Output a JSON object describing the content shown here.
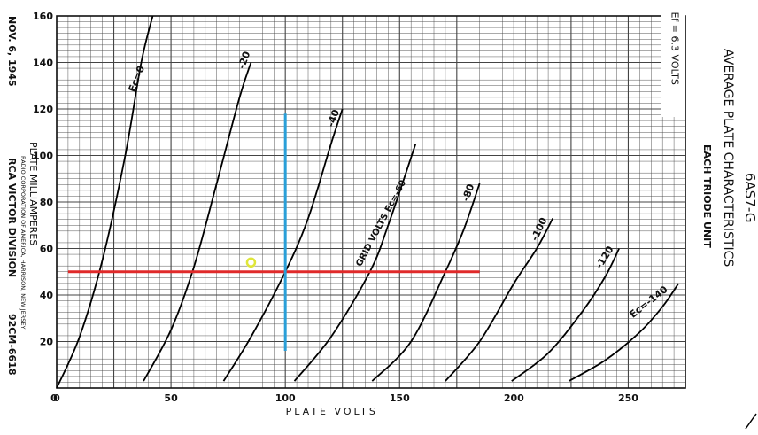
{
  "chart_data": {
    "type": "line",
    "xlabel": "PLATE VOLTS",
    "ylabel": "PLATE MILLIAMPERES",
    "xlim": [
      0,
      275
    ],
    "ylim": [
      0,
      160
    ],
    "x_ticks": [
      0,
      50,
      100,
      150,
      200,
      250
    ],
    "y_ticks": [
      20,
      40,
      60,
      80,
      100,
      120,
      140,
      160
    ],
    "grid": true,
    "title_lines": [
      "6AS7-G",
      "AVERAGE",
      "PLATE CHARACTERISTICS",
      "EACH TRIDE UNIT"
    ],
    "title_main": "6AS7-G",
    "title_line1": "AVERAGE   PLATE   CHARACTERISTICS",
    "title_line2": "EACH TRIODE UNIT",
    "heater_note": "Ef = 6.3 VOLTS",
    "left_texts": {
      "date": "NOV. 6, 1945",
      "division": "RCA VICTOR DIVISION",
      "company": "RADIO CORPORATION OF AMERICA, HARRISON, NEW JERSEY",
      "code": "92CM-6618"
    },
    "grid_volts_label": "GRID VOLTS Ec=-60",
    "series": [
      {
        "name": "Ec=0",
        "label": "Ec=0",
        "x": [
          0,
          10,
          20,
          30,
          37,
          42
        ],
        "y": [
          0,
          22,
          55,
          100,
          140,
          160
        ]
      },
      {
        "name": "-20",
        "label": "-20",
        "x": [
          38,
          50,
          60,
          70,
          80,
          85
        ],
        "y": [
          3,
          25,
          52,
          88,
          125,
          140
        ]
      },
      {
        "name": "-40",
        "label": "-40",
        "x": [
          73,
          85,
          100,
          110,
          120,
          125
        ],
        "y": [
          3,
          22,
          50,
          73,
          105,
          120
        ]
      },
      {
        "name": "-60",
        "label": "",
        "x": [
          104,
          120,
          137,
          145,
          157
        ],
        "y": [
          3,
          22,
          50,
          70,
          105
        ]
      },
      {
        "name": "-80",
        "label": "-80",
        "x": [
          138,
          155,
          170,
          178,
          185
        ],
        "y": [
          3,
          20,
          50,
          68,
          88
        ]
      },
      {
        "name": "-100",
        "label": "-100",
        "x": [
          170,
          185,
          200,
          210,
          217
        ],
        "y": [
          3,
          20,
          45,
          60,
          73
        ]
      },
      {
        "name": "-120",
        "label": "-120",
        "x": [
          199,
          215,
          230,
          240,
          246
        ],
        "y": [
          3,
          15,
          33,
          48,
          60
        ]
      },
      {
        "name": "-140",
        "label": "Ec=-140",
        "x": [
          224,
          240,
          255,
          265,
          272
        ],
        "y": [
          3,
          12,
          24,
          35,
          45
        ]
      }
    ],
    "annotations": {
      "red_line": {
        "y": 50,
        "x_range": [
          5,
          185
        ],
        "color": "#e02a2a"
      },
      "blue_line": {
        "x": 100,
        "y_range": [
          16,
          118
        ],
        "color": "#2a9fd8"
      },
      "yellow_marker": {
        "x": 85,
        "y": 54,
        "color": "#dfe63a"
      }
    }
  }
}
